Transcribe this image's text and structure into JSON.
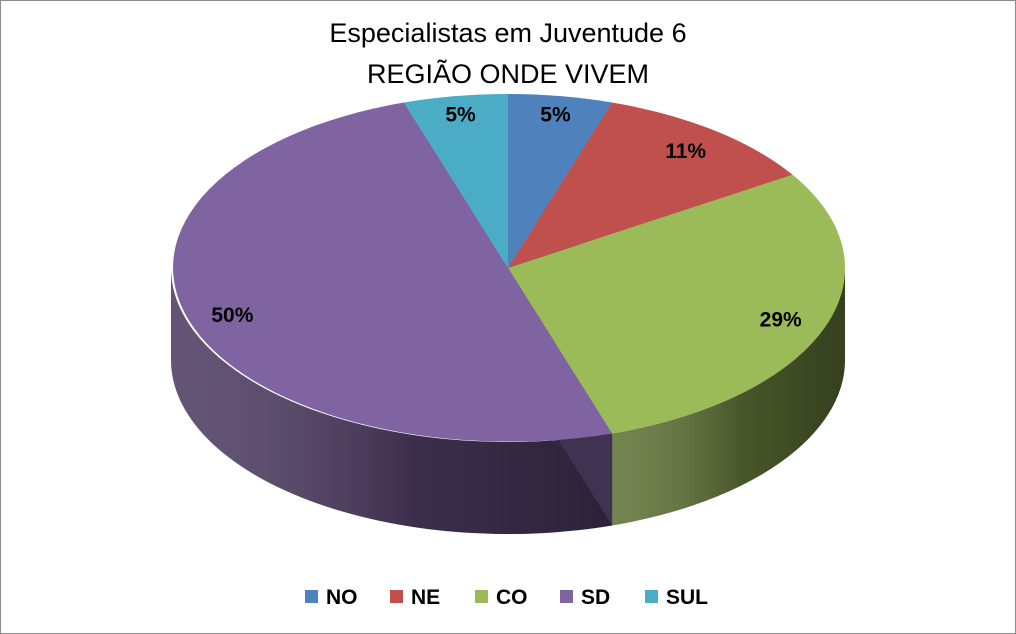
{
  "chart_data": {
    "type": "pie",
    "title": [
      "Especialistas em Juventude 6",
      "REGIÃO ONDE VIVEM"
    ],
    "categories": [
      "NO",
      "NE",
      "CO",
      "SD",
      "SUL"
    ],
    "values": [
      5,
      11,
      29,
      50,
      5
    ],
    "labels": [
      "5%",
      "11%",
      "29%",
      "50%",
      "5%"
    ],
    "colors": [
      "#4f81bd",
      "#c0504d",
      "#9bbb59",
      "#8064a2",
      "#4bacc6"
    ],
    "style": "3d",
    "legend": "bottom"
  }
}
